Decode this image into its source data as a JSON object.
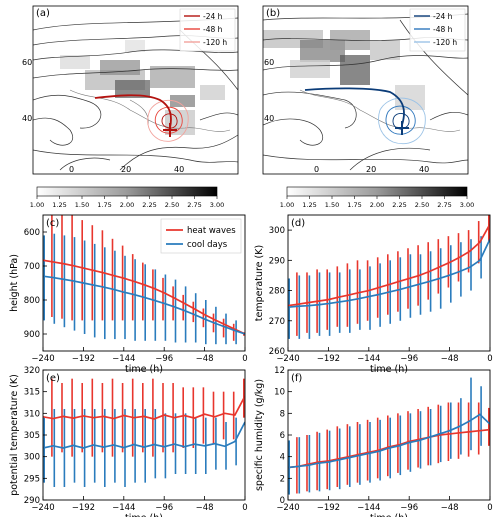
{
  "figure": {
    "map_a": {
      "label": "(a)",
      "lat_ticks": [
        "60",
        "40"
      ],
      "lon_ticks": [
        "0",
        "20",
        "40"
      ],
      "legend": [
        {
          "name": "-24 h",
          "color": "#b3120f"
        },
        {
          "name": "-48 h",
          "color": "#e8453c"
        },
        {
          "name": "-120 h",
          "color": "#f2a39d"
        }
      ],
      "track_color": "#b3120f",
      "cross_color": "#b3120f"
    },
    "map_b": {
      "label": "(b)",
      "lat_ticks": [
        "60",
        "40"
      ],
      "lon_ticks": [
        "0",
        "20",
        "40"
      ],
      "legend": [
        {
          "name": "-24 h",
          "color": "#0b3c78"
        },
        {
          "name": "-48 h",
          "color": "#2f77bd"
        },
        {
          "name": "-120 h",
          "color": "#9cc3e6"
        }
      ],
      "track_color": "#0b3c78",
      "cross_color": "#0b3c78"
    },
    "colorbar_ticks": [
      "1.00",
      "1.25",
      "1.50",
      "1.75",
      "2.00",
      "2.25",
      "2.50",
      "2.75",
      "3.00"
    ]
  },
  "chart_data": [
    {
      "type": "line",
      "panel": "(c)",
      "xlabel": "time (h)",
      "ylabel": "height (hPa)",
      "xlim": [
        -240,
        0
      ],
      "ylim": [
        950,
        550
      ],
      "y_inverted": true,
      "xticks": [
        -240,
        -192,
        -144,
        -96,
        -48,
        0
      ],
      "yticks": [
        600,
        700,
        800,
        900
      ],
      "legend": [
        "heat waves",
        "cool days"
      ],
      "series": [
        {
          "name": "heat waves",
          "color": "#e8362d",
          "x": [
            -240,
            -228,
            -216,
            -204,
            -192,
            -180,
            -168,
            -156,
            -144,
            -132,
            -120,
            -108,
            -96,
            -84,
            -72,
            -60,
            -48,
            -36,
            -24,
            -12,
            0
          ],
          "values": [
            683,
            688,
            693,
            699,
            706,
            713,
            720,
            728,
            736,
            745,
            755,
            766,
            779,
            794,
            810,
            826,
            843,
            858,
            872,
            886,
            900
          ],
          "err_low": [
            560,
            540,
            543,
            550,
            565,
            580,
            595,
            620,
            640,
            665,
            690,
            710,
            735,
            760,
            785,
            805,
            825,
            840,
            855,
            870,
            895
          ],
          "err_high": [
            810,
            850,
            855,
            860,
            860,
            860,
            860,
            860,
            860,
            860,
            860,
            860,
            860,
            860,
            860,
            865,
            880,
            895,
            910,
            920,
            905
          ]
        },
        {
          "name": "cool days",
          "color": "#2a7cbd",
          "x": [
            -240,
            -228,
            -216,
            -204,
            -192,
            -180,
            -168,
            -156,
            -144,
            -132,
            -120,
            -108,
            -96,
            -84,
            -72,
            -60,
            -48,
            -36,
            -24,
            -12,
            0
          ],
          "values": [
            730,
            734,
            739,
            744,
            750,
            756,
            762,
            769,
            777,
            784,
            792,
            801,
            810,
            820,
            831,
            843,
            856,
            868,
            879,
            890,
            900
          ],
          "err_low": [
            610,
            605,
            610,
            615,
            625,
            635,
            645,
            655,
            670,
            680,
            695,
            710,
            725,
            740,
            760,
            780,
            800,
            820,
            840,
            860,
            890
          ],
          "err_high": [
            860,
            870,
            880,
            890,
            900,
            910,
            915,
            915,
            915,
            920,
            920,
            920,
            920,
            925,
            925,
            925,
            930,
            930,
            930,
            930,
            905
          ]
        }
      ]
    },
    {
      "type": "line",
      "panel": "(d)",
      "xlabel": "time (h)",
      "ylabel": "temperature (K)",
      "xlim": [
        -240,
        0
      ],
      "ylim": [
        260,
        305
      ],
      "xticks": [
        -240,
        -192,
        -144,
        -96,
        -48,
        0
      ],
      "yticks": [
        260,
        270,
        280,
        290,
        300
      ],
      "series": [
        {
          "name": "heat waves",
          "color": "#e8362d",
          "x": [
            -240,
            -228,
            -216,
            -204,
            -192,
            -180,
            -168,
            -156,
            -144,
            -132,
            -120,
            -108,
            -96,
            -84,
            -72,
            -60,
            -48,
            -36,
            -24,
            -12,
            0
          ],
          "values": [
            275,
            275.5,
            276,
            276.5,
            277,
            277.8,
            278.5,
            279.3,
            280,
            281,
            282,
            283,
            284,
            285,
            286.3,
            287.8,
            289.3,
            291,
            293,
            296,
            302
          ],
          "err_low": [
            265,
            265,
            266,
            266,
            267,
            268,
            268,
            269,
            270,
            271,
            272,
            273,
            274,
            275,
            277,
            279,
            281,
            283,
            286,
            289,
            296
          ],
          "err_high": [
            285,
            286,
            286,
            287,
            287,
            288,
            289,
            290,
            290,
            291,
            292,
            293,
            294,
            295,
            296,
            297,
            298,
            299,
            300,
            303,
            305
          ]
        },
        {
          "name": "cool days",
          "color": "#2a7cbd",
          "x": [
            -240,
            -228,
            -216,
            -204,
            -192,
            -180,
            -168,
            -156,
            -144,
            -132,
            -120,
            -108,
            -96,
            -84,
            -72,
            -60,
            -48,
            -36,
            -24,
            -12,
            0
          ],
          "values": [
            274.5,
            274.8,
            275,
            275.3,
            275.7,
            276.2,
            276.7,
            277.3,
            278,
            278.7,
            279.5,
            280.3,
            281.2,
            282.1,
            283,
            284,
            285.1,
            286.3,
            287.7,
            290,
            297
          ],
          "err_low": [
            264,
            264,
            264,
            265,
            265,
            266,
            266,
            267,
            267,
            268,
            269,
            270,
            271,
            272,
            273,
            274,
            276,
            278,
            280,
            284,
            293
          ],
          "err_high": [
            284,
            285,
            285,
            286,
            286,
            286,
            287,
            287,
            288,
            289,
            290,
            291,
            292,
            292,
            293,
            294,
            295,
            296,
            297,
            298,
            300
          ]
        }
      ]
    },
    {
      "type": "line",
      "panel": "(e)",
      "xlabel": "time (h)",
      "ylabel": "potential temperature (K)",
      "xlim": [
        -240,
        0
      ],
      "ylim": [
        290,
        320
      ],
      "xticks": [
        -240,
        -192,
        -144,
        -96,
        -48,
        0
      ],
      "yticks": [
        290,
        295,
        300,
        305,
        310,
        315,
        320
      ],
      "series": [
        {
          "name": "heat waves",
          "color": "#e8362d",
          "x": [
            -240,
            -228,
            -216,
            -204,
            -192,
            -180,
            -168,
            -156,
            -144,
            -132,
            -120,
            -108,
            -96,
            -84,
            -72,
            -60,
            -48,
            -36,
            -24,
            -12,
            0
          ],
          "values": [
            309.2,
            308.8,
            309.3,
            308.9,
            309.4,
            309,
            309.3,
            308.8,
            309.5,
            309,
            309.3,
            308.7,
            309.6,
            309,
            309.5,
            308.9,
            309.8,
            309.2,
            310,
            309.6,
            314
          ],
          "err_low": [
            302,
            300,
            301,
            300,
            301,
            300,
            301,
            300,
            301,
            300,
            301,
            300,
            301,
            301,
            302,
            302,
            303,
            303,
            304,
            304,
            309
          ],
          "err_high": [
            316,
            318,
            317,
            318,
            317,
            318,
            317,
            318,
            317,
            318,
            317,
            318,
            317,
            317,
            316,
            316,
            316,
            315,
            315,
            315,
            318
          ]
        },
        {
          "name": "cool days",
          "color": "#2a7cbd",
          "x": [
            -240,
            -228,
            -216,
            -204,
            -192,
            -180,
            -168,
            -156,
            -144,
            -132,
            -120,
            -108,
            -96,
            -84,
            -72,
            -60,
            -48,
            -36,
            -24,
            -12,
            0
          ],
          "values": [
            302,
            302.5,
            302,
            302.6,
            302,
            302.7,
            302.2,
            302.7,
            302.1,
            302.8,
            302.2,
            302.8,
            302.3,
            302.9,
            302.3,
            302.9,
            302.5,
            303,
            302.4,
            303.5,
            308
          ],
          "err_low": [
            294,
            293,
            293,
            294,
            293,
            294,
            293,
            294,
            293,
            294,
            294,
            295,
            295,
            296,
            296,
            296,
            296,
            297,
            297,
            298,
            303
          ],
          "err_high": [
            309,
            311,
            311,
            311,
            311,
            311,
            311,
            311,
            311,
            311,
            311,
            311,
            310,
            310,
            310,
            309,
            309,
            309,
            308,
            309,
            310
          ]
        }
      ]
    },
    {
      "type": "line",
      "panel": "(f)",
      "xlabel": "time (h)",
      "ylabel": "specific humidity (g/kg)",
      "xlim": [
        -240,
        0
      ],
      "ylim": [
        0,
        12
      ],
      "xticks": [
        -240,
        -192,
        -144,
        -96,
        -48,
        0
      ],
      "yticks": [
        0,
        2,
        4,
        6,
        8,
        10,
        12
      ],
      "series": [
        {
          "name": "heat waves",
          "color": "#e8362d",
          "x": [
            -240,
            -228,
            -216,
            -204,
            -192,
            -180,
            -168,
            -156,
            -144,
            -132,
            -120,
            -108,
            -96,
            -84,
            -72,
            -60,
            -48,
            -36,
            -24,
            -12,
            0
          ],
          "values": [
            3,
            3.1,
            3.3,
            3.5,
            3.6,
            3.8,
            4,
            4.2,
            4.4,
            4.6,
            4.9,
            5.1,
            5.4,
            5.6,
            5.8,
            6,
            6.1,
            6.2,
            6.3,
            6.4,
            6.5
          ],
          "err_low": [
            0.5,
            0.6,
            0.8,
            0.9,
            1,
            1.2,
            1.4,
            1.6,
            1.8,
            2,
            2.2,
            2.5,
            2.8,
            3,
            3.2,
            3.4,
            3.6,
            3.8,
            4,
            4.2,
            5
          ],
          "err_high": [
            5.5,
            5.8,
            6,
            6.3,
            6.5,
            6.8,
            7,
            7.2,
            7.4,
            7.6,
            7.8,
            8,
            8.2,
            8.4,
            8.6,
            8.8,
            9,
            9,
            9,
            9,
            8.5
          ]
        },
        {
          "name": "cool days",
          "color": "#2a7cbd",
          "x": [
            -240,
            -228,
            -216,
            -204,
            -192,
            -180,
            -168,
            -156,
            -144,
            -132,
            -120,
            -108,
            -96,
            -84,
            -72,
            -60,
            -48,
            -36,
            -24,
            -12,
            0
          ],
          "values": [
            3,
            3.1,
            3.2,
            3.4,
            3.5,
            3.7,
            3.9,
            4.1,
            4.3,
            4.5,
            4.8,
            5,
            5.3,
            5.5,
            5.8,
            6.1,
            6.4,
            6.8,
            7.3,
            7.9,
            7
          ],
          "err_low": [
            0.5,
            0.6,
            0.7,
            0.8,
            0.9,
            1,
            1.2,
            1.4,
            1.6,
            1.8,
            2,
            2.3,
            2.6,
            2.9,
            3.2,
            3.5,
            3.8,
            4.2,
            4.6,
            5,
            5.5
          ],
          "err_high": [
            5.5,
            5.8,
            6,
            6.2,
            6.4,
            6.6,
            6.8,
            7,
            7.2,
            7.4,
            7.6,
            7.8,
            8,
            8.2,
            8.4,
            8.7,
            9,
            9.4,
            11.3,
            10.5,
            8.5
          ]
        }
      ]
    }
  ]
}
